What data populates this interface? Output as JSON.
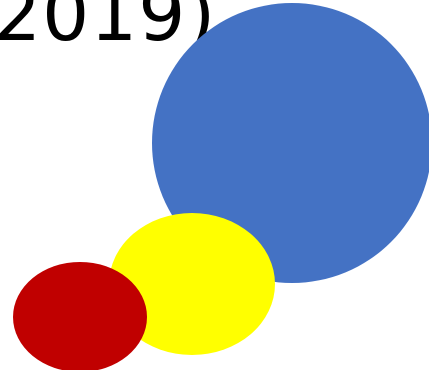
{
  "slide": {
    "title_fragment": "2019)"
  },
  "shapes": [
    {
      "name": "blue-circle",
      "color": "#4472C4"
    },
    {
      "name": "yellow-circle",
      "color": "#FFFF00"
    },
    {
      "name": "red-circle",
      "color": "#C00000"
    }
  ]
}
